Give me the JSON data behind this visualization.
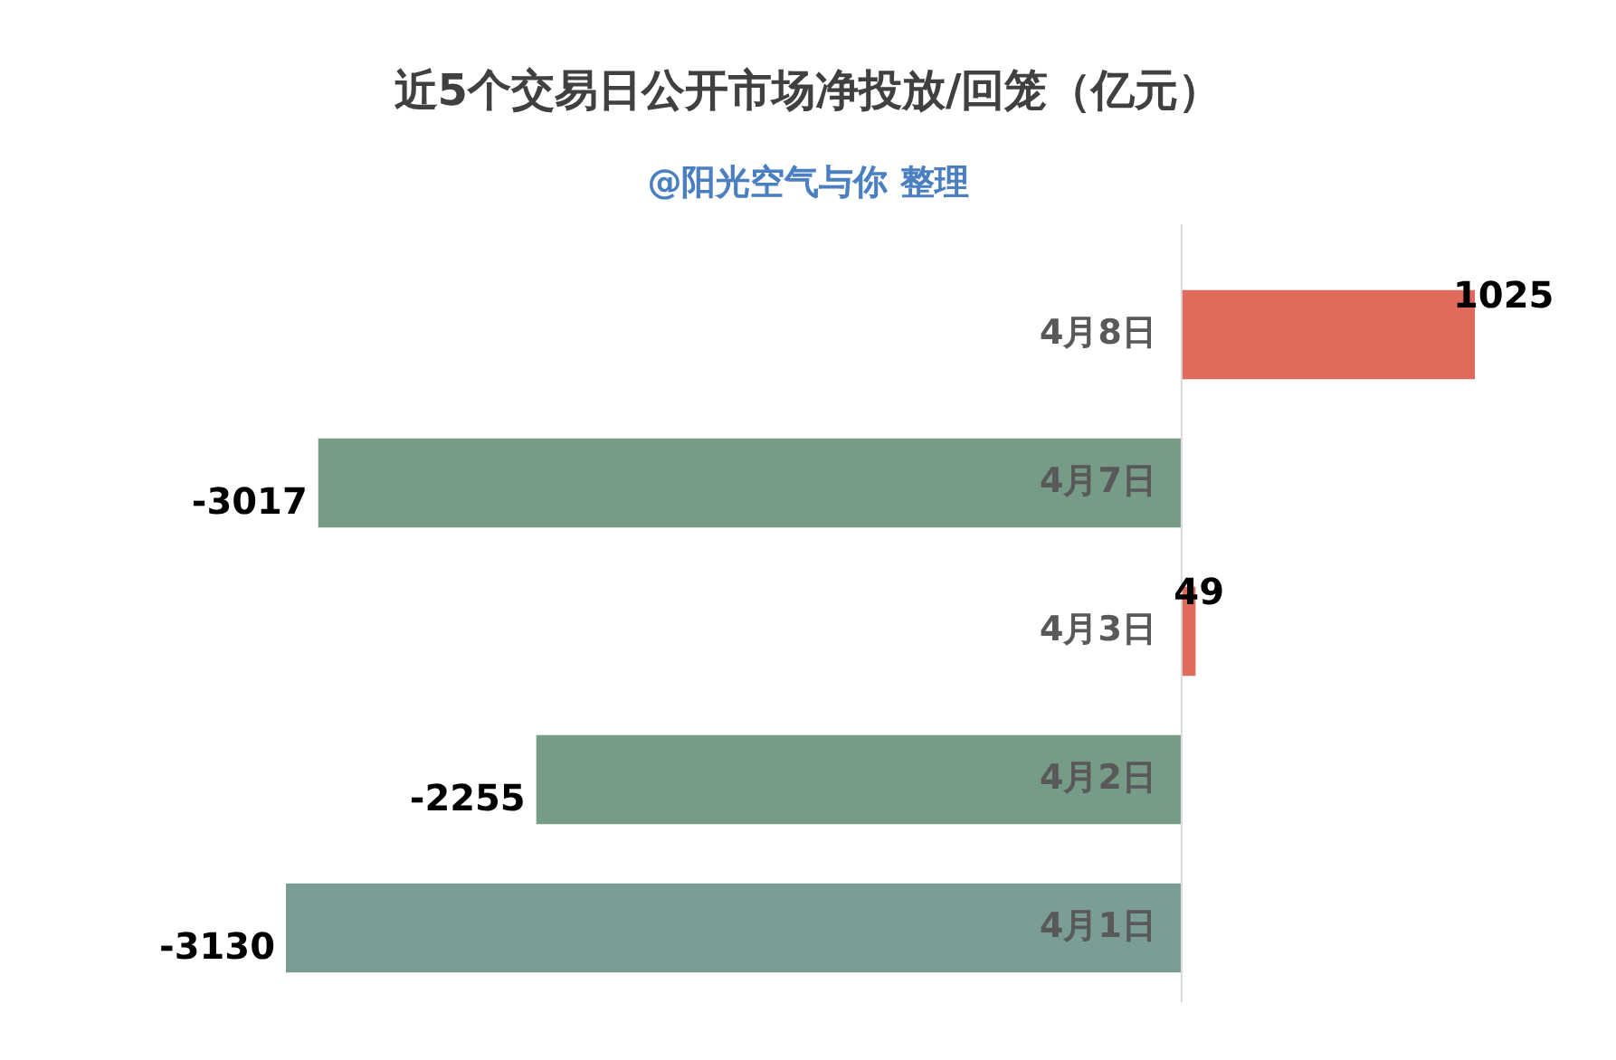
{
  "chart_data": {
    "type": "bar",
    "orientation": "horizontal",
    "title": "近5个交易日公开市场净投放/回笼（亿元）",
    "subtitle": "@阳光空气与你 整理",
    "categories": [
      "4月8日",
      "4月7日",
      "4月3日",
      "4月2日",
      "4月1日"
    ],
    "values": [
      1025,
      -3017,
      49,
      -2255,
      -3130
    ],
    "colors": [
      "#e06b5d",
      "#769b87",
      "#e06b5d",
      "#769b87",
      "#7a9e96"
    ],
    "data_labels": true,
    "legend": false
  }
}
